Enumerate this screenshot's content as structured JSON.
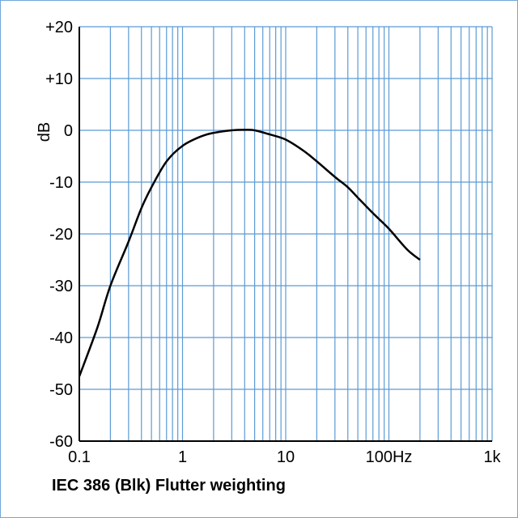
{
  "chart_data": {
    "type": "line",
    "title": "IEC 386 (Blk) Flutter weighting",
    "xlabel": "",
    "ylabel": "dB",
    "xscale": "log",
    "xlim": [
      0.1,
      1000
    ],
    "ylim": [
      -60,
      20
    ],
    "grid": true,
    "x_tick_labels": [
      {
        "value": 0.1,
        "label": "0.1"
      },
      {
        "value": 1,
        "label": "1"
      },
      {
        "value": 10,
        "label": "10"
      },
      {
        "value": 100,
        "label": "100Hz"
      },
      {
        "value": 1000,
        "label": "1k"
      }
    ],
    "y_tick_labels": [
      {
        "value": 20,
        "label": "+20"
      },
      {
        "value": 10,
        "label": "+10"
      },
      {
        "value": 0,
        "label": "0"
      },
      {
        "value": -10,
        "label": "-10"
      },
      {
        "value": -20,
        "label": "-20"
      },
      {
        "value": -30,
        "label": "-30"
      },
      {
        "value": -40,
        "label": "-40"
      },
      {
        "value": -50,
        "label": "-50"
      },
      {
        "value": -60,
        "label": "-60"
      }
    ],
    "series": [
      {
        "x": [
          0.1,
          0.15,
          0.2,
          0.3,
          0.4,
          0.5,
          0.7,
          1,
          1.5,
          2,
          3,
          4,
          5,
          7,
          10,
          15,
          20,
          30,
          40,
          50,
          70,
          100,
          150,
          200
        ],
        "y": [
          -47.5,
          -38,
          -30,
          -21.5,
          -15,
          -11,
          -6,
          -3,
          -1.2,
          -0.5,
          0,
          0.1,
          0,
          -0.8,
          -1.8,
          -4,
          -6,
          -9,
          -11,
          -13,
          -16,
          -19,
          -23,
          -25
        ]
      }
    ],
    "colors": {
      "grid": "#5b9bd5",
      "line": "#000000",
      "axis": "#000000",
      "frame": "#6fa8dc"
    }
  }
}
